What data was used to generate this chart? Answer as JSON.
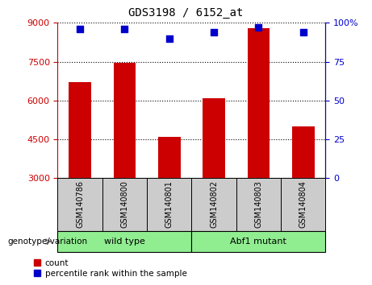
{
  "title": "GDS3198 / 6152_at",
  "samples": [
    "GSM140786",
    "GSM140800",
    "GSM140801",
    "GSM140802",
    "GSM140803",
    "GSM140804"
  ],
  "counts": [
    6700,
    7450,
    4600,
    6100,
    8800,
    5000
  ],
  "percentiles": [
    96,
    96,
    90,
    94,
    97,
    94
  ],
  "ylim_left": [
    3000,
    9000
  ],
  "ylim_right": [
    0,
    100
  ],
  "yticks_left": [
    3000,
    4500,
    6000,
    7500,
    9000
  ],
  "yticks_right": [
    0,
    25,
    50,
    75,
    100
  ],
  "bar_color": "#cc0000",
  "dot_color": "#0000cc",
  "groups": [
    {
      "label": "wild type",
      "indices": [
        0,
        1,
        2
      ],
      "color": "#90ee90"
    },
    {
      "label": "Abf1 mutant",
      "indices": [
        3,
        4,
        5
      ],
      "color": "#90ee90"
    }
  ],
  "group_label": "genotype/variation",
  "legend_count_label": "count",
  "legend_percentile_label": "percentile rank within the sample",
  "left_tick_color": "#cc0000",
  "right_tick_color": "#0000cc",
  "grid_color": "#000000",
  "bar_width": 0.5,
  "sample_box_color": "#cccccc",
  "figsize": [
    4.61,
    3.54
  ],
  "dpi": 100
}
